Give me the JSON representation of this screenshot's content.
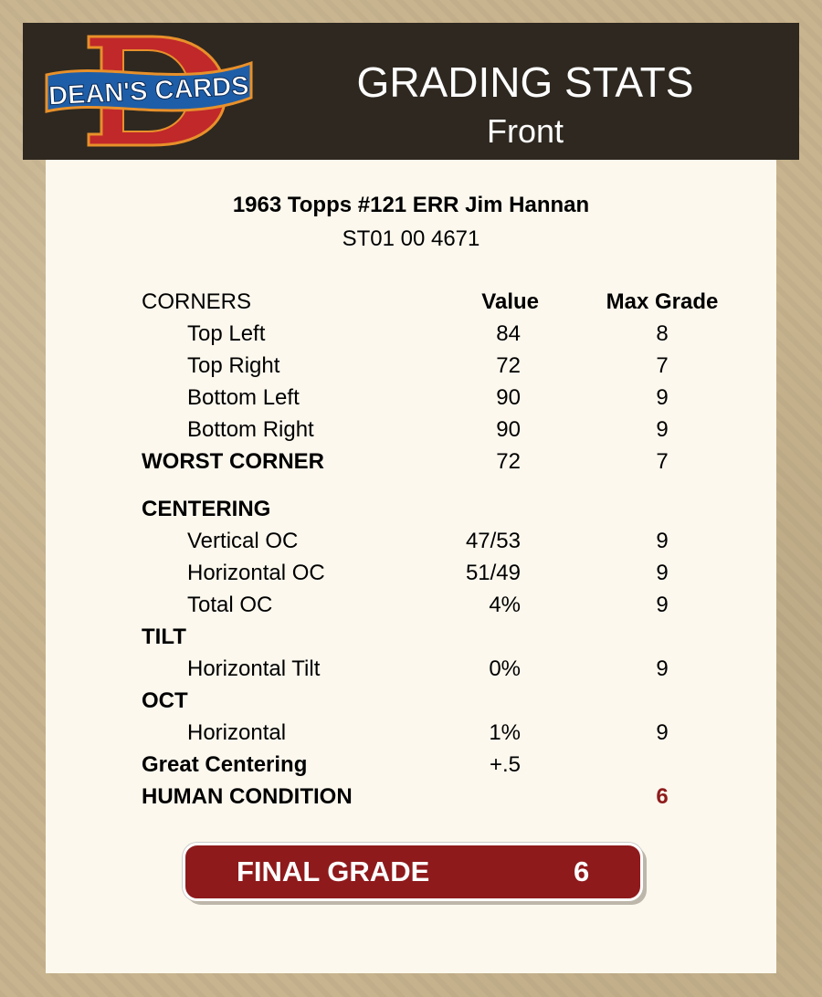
{
  "header": {
    "logo_text": "DEAN'S CARDS",
    "title": "GRADING STATS",
    "subtitle": "Front"
  },
  "card": {
    "name": "1963 Topps #121 ERR Jim Hannan",
    "cert": "ST01 00 4671"
  },
  "colors": {
    "header_bg": "#2e2820",
    "panel_bg": "#fcf8ee",
    "accent_red": "#8e1a1c"
  },
  "rows": [
    {
      "label": "CORNERS",
      "value": "Value",
      "max": "Max Grade",
      "style": "head"
    },
    {
      "label": "Top Left",
      "value": "84",
      "max": "8",
      "style": "indent"
    },
    {
      "label": "Top Right",
      "value": "72",
      "max": "7",
      "style": "indent"
    },
    {
      "label": "Bottom Left",
      "value": "90",
      "max": "9",
      "style": "indent"
    },
    {
      "label": "Bottom Right",
      "value": "90",
      "max": "9",
      "style": "indent"
    },
    {
      "label": "WORST CORNER",
      "value": "72",
      "max": "7",
      "style": "bold"
    },
    {
      "label": "CENTERING",
      "value": "",
      "max": "",
      "style": "bold gap"
    },
    {
      "label": "Vertical OC",
      "value": "47/53",
      "max": "9",
      "style": "indent"
    },
    {
      "label": "Horizontal OC",
      "value": "51/49",
      "max": "9",
      "style": "indent"
    },
    {
      "label": "Total OC",
      "value": "4%",
      "max": "9",
      "style": "indent"
    },
    {
      "label": "TILT",
      "value": "",
      "max": "",
      "style": "bold"
    },
    {
      "label": "Horizontal Tilt",
      "value": "0%",
      "max": "9",
      "style": "indent"
    },
    {
      "label": "OCT",
      "value": "",
      "max": "",
      "style": "bold"
    },
    {
      "label": "Horizontal",
      "value": "1%",
      "max": "9",
      "style": "indent"
    },
    {
      "label": "Great Centering",
      "value": "+.5",
      "max": "",
      "style": "bold"
    },
    {
      "label": "HUMAN CONDITION",
      "value": "",
      "max": "6",
      "style": "bold",
      "max_red": true
    }
  ],
  "final": {
    "label": "FINAL GRADE",
    "value": "6"
  }
}
